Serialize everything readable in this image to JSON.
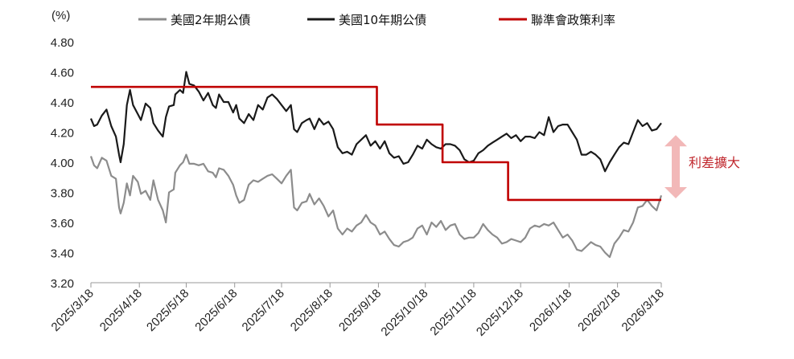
{
  "chart_data": {
    "type": "line",
    "ylabel": "(%)",
    "ylim": [
      3.2,
      4.8
    ],
    "yticks": [
      "3.20",
      "3.40",
      "3.60",
      "3.80",
      "4.00",
      "4.20",
      "4.40",
      "4.60",
      "4.80"
    ],
    "xticks": [
      "2025/3/18",
      "2025/4/18",
      "2025/5/18",
      "2025/6/18",
      "2025/7/18",
      "2025/8/18",
      "2025/9/18",
      "2025/10/18",
      "2025/11/18",
      "2025/12/18",
      "2026/1/18",
      "2026/2/18",
      "2026/3/18"
    ],
    "grid": false,
    "legend_position": "top",
    "series": [
      {
        "name": "美國2年期公債",
        "color": "#8c8c8c",
        "points": [
          [
            "2025/3/18",
            4.04
          ],
          [
            "2025/3/20",
            3.98
          ],
          [
            "2025/3/22",
            3.96
          ],
          [
            "2025/3/25",
            4.03
          ],
          [
            "2025/3/28",
            4.01
          ],
          [
            "2025/3/31",
            3.91
          ],
          [
            "2025/4/3",
            3.89
          ],
          [
            "2025/4/5",
            3.7
          ],
          [
            "2025/4/6",
            3.66
          ],
          [
            "2025/4/8",
            3.73
          ],
          [
            "2025/4/10",
            3.86
          ],
          [
            "2025/4/12",
            3.78
          ],
          [
            "2025/4/14",
            3.91
          ],
          [
            "2025/4/17",
            3.87
          ],
          [
            "2025/4/19",
            3.79
          ],
          [
            "2025/4/22",
            3.81
          ],
          [
            "2025/4/25",
            3.75
          ],
          [
            "2025/4/27",
            3.88
          ],
          [
            "2025/4/30",
            3.75
          ],
          [
            "2025/5/3",
            3.68
          ],
          [
            "2025/5/5",
            3.6
          ],
          [
            "2025/5/7",
            3.8
          ],
          [
            "2025/5/10",
            3.82
          ],
          [
            "2025/5/11",
            3.93
          ],
          [
            "2025/5/14",
            3.98
          ],
          [
            "2025/5/16",
            4.0
          ],
          [
            "2025/5/18",
            4.05
          ],
          [
            "2025/5/20",
            3.99
          ],
          [
            "2025/5/23",
            3.99
          ],
          [
            "2025/5/26",
            3.98
          ],
          [
            "2025/5/29",
            3.99
          ],
          [
            "2025/6/1",
            3.94
          ],
          [
            "2025/6/4",
            3.93
          ],
          [
            "2025/6/6",
            3.9
          ],
          [
            "2025/6/8",
            3.96
          ],
          [
            "2025/6/11",
            3.95
          ],
          [
            "2025/6/14",
            3.91
          ],
          [
            "2025/6/17",
            3.85
          ],
          [
            "2025/6/19",
            3.78
          ],
          [
            "2025/6/21",
            3.73
          ],
          [
            "2025/6/24",
            3.75
          ],
          [
            "2025/6/27",
            3.85
          ],
          [
            "2025/6/30",
            3.88
          ],
          [
            "2025/7/3",
            3.87
          ],
          [
            "2025/7/6",
            3.89
          ],
          [
            "2025/7/9",
            3.91
          ],
          [
            "2025/7/12",
            3.92
          ],
          [
            "2025/7/15",
            3.89
          ],
          [
            "2025/7/18",
            3.86
          ],
          [
            "2025/7/21",
            3.91
          ],
          [
            "2025/7/24",
            3.95
          ],
          [
            "2025/7/26",
            3.7
          ],
          [
            "2025/7/28",
            3.68
          ],
          [
            "2025/7/31",
            3.73
          ],
          [
            "2025/8/3",
            3.74
          ],
          [
            "2025/8/5",
            3.79
          ],
          [
            "2025/8/8",
            3.72
          ],
          [
            "2025/8/11",
            3.76
          ],
          [
            "2025/8/14",
            3.71
          ],
          [
            "2025/8/17",
            3.64
          ],
          [
            "2025/8/20",
            3.68
          ],
          [
            "2025/8/23",
            3.56
          ],
          [
            "2025/8/26",
            3.52
          ],
          [
            "2025/8/29",
            3.56
          ],
          [
            "2025/9/1",
            3.54
          ],
          [
            "2025/9/4",
            3.58
          ],
          [
            "2025/9/7",
            3.6
          ],
          [
            "2025/9/10",
            3.65
          ],
          [
            "2025/9/13",
            3.6
          ],
          [
            "2025/9/16",
            3.58
          ],
          [
            "2025/9/19",
            3.52
          ],
          [
            "2025/9/22",
            3.54
          ],
          [
            "2025/9/25",
            3.49
          ],
          [
            "2025/9/28",
            3.45
          ],
          [
            "2025/10/1",
            3.44
          ],
          [
            "2025/10/4",
            3.47
          ],
          [
            "2025/10/7",
            3.48
          ],
          [
            "2025/10/10",
            3.5
          ],
          [
            "2025/10/13",
            3.56
          ],
          [
            "2025/10/16",
            3.58
          ],
          [
            "2025/10/19",
            3.52
          ],
          [
            "2025/10/22",
            3.6
          ],
          [
            "2025/10/25",
            3.57
          ],
          [
            "2025/10/28",
            3.61
          ],
          [
            "2025/10/31",
            3.55
          ],
          [
            "2025/11/3",
            3.58
          ],
          [
            "2025/11/6",
            3.59
          ],
          [
            "2025/11/9",
            3.52
          ],
          [
            "2025/11/12",
            3.49
          ],
          [
            "2025/11/15",
            3.5
          ],
          [
            "2025/11/18",
            3.5
          ],
          [
            "2025/11/21",
            3.53
          ],
          [
            "2025/11/24",
            3.59
          ],
          [
            "2025/11/27",
            3.55
          ],
          [
            "2025/11/30",
            3.52
          ],
          [
            "2025/12/3",
            3.5
          ],
          [
            "2025/12/6",
            3.46
          ],
          [
            "2025/12/9",
            3.47
          ],
          [
            "2025/12/12",
            3.49
          ],
          [
            "2025/12/15",
            3.48
          ],
          [
            "2025/12/18",
            3.47
          ],
          [
            "2025/12/21",
            3.5
          ],
          [
            "2025/12/24",
            3.56
          ],
          [
            "2025/12/27",
            3.58
          ],
          [
            "2025/12/30",
            3.57
          ],
          [
            "2026/1/2",
            3.59
          ],
          [
            "2026/1/5",
            3.58
          ],
          [
            "2026/1/8",
            3.6
          ],
          [
            "2026/1/11",
            3.55
          ],
          [
            "2026/1/14",
            3.5
          ],
          [
            "2026/1/17",
            3.52
          ],
          [
            "2026/1/20",
            3.48
          ],
          [
            "2026/1/23",
            3.42
          ],
          [
            "2026/1/26",
            3.41
          ],
          [
            "2026/1/29",
            3.44
          ],
          [
            "2026/2/1",
            3.47
          ],
          [
            "2026/2/4",
            3.45
          ],
          [
            "2026/2/7",
            3.44
          ],
          [
            "2026/2/10",
            3.4
          ],
          [
            "2026/2/13",
            3.37
          ],
          [
            "2026/2/16",
            3.46
          ],
          [
            "2026/2/19",
            3.5
          ],
          [
            "2026/2/22",
            3.55
          ],
          [
            "2026/2/25",
            3.54
          ],
          [
            "2026/2/28",
            3.6
          ],
          [
            "2026/3/3",
            3.7
          ],
          [
            "2026/3/6",
            3.71
          ],
          [
            "2026/3/9",
            3.75
          ],
          [
            "2026/3/12",
            3.71
          ],
          [
            "2026/3/15",
            3.68
          ],
          [
            "2026/3/18",
            3.78
          ]
        ]
      },
      {
        "name": "美國10年期公債",
        "color": "#1a1a1a",
        "points": [
          [
            "2025/3/18",
            4.29
          ],
          [
            "2025/3/20",
            4.24
          ],
          [
            "2025/3/22",
            4.25
          ],
          [
            "2025/3/25",
            4.31
          ],
          [
            "2025/3/28",
            4.35
          ],
          [
            "2025/3/31",
            4.24
          ],
          [
            "2025/4/3",
            4.17
          ],
          [
            "2025/4/5",
            4.05
          ],
          [
            "2025/4/6",
            4.0
          ],
          [
            "2025/4/8",
            4.12
          ],
          [
            "2025/4/10",
            4.38
          ],
          [
            "2025/4/12",
            4.48
          ],
          [
            "2025/4/14",
            4.38
          ],
          [
            "2025/4/17",
            4.32
          ],
          [
            "2025/4/19",
            4.28
          ],
          [
            "2025/4/22",
            4.39
          ],
          [
            "2025/4/25",
            4.36
          ],
          [
            "2025/4/27",
            4.26
          ],
          [
            "2025/4/30",
            4.21
          ],
          [
            "2025/5/3",
            4.17
          ],
          [
            "2025/5/5",
            4.3
          ],
          [
            "2025/5/7",
            4.37
          ],
          [
            "2025/5/10",
            4.38
          ],
          [
            "2025/5/11",
            4.45
          ],
          [
            "2025/5/14",
            4.48
          ],
          [
            "2025/5/16",
            4.46
          ],
          [
            "2025/5/18",
            4.6
          ],
          [
            "2025/5/20",
            4.52
          ],
          [
            "2025/5/23",
            4.51
          ],
          [
            "2025/5/26",
            4.47
          ],
          [
            "2025/5/29",
            4.41
          ],
          [
            "2025/6/1",
            4.46
          ],
          [
            "2025/6/4",
            4.38
          ],
          [
            "2025/6/6",
            4.36
          ],
          [
            "2025/6/8",
            4.45
          ],
          [
            "2025/6/11",
            4.4
          ],
          [
            "2025/6/14",
            4.4
          ],
          [
            "2025/6/17",
            4.33
          ],
          [
            "2025/6/19",
            4.38
          ],
          [
            "2025/6/21",
            4.29
          ],
          [
            "2025/6/24",
            4.26
          ],
          [
            "2025/6/27",
            4.32
          ],
          [
            "2025/6/30",
            4.28
          ],
          [
            "2025/7/3",
            4.38
          ],
          [
            "2025/7/6",
            4.35
          ],
          [
            "2025/7/9",
            4.43
          ],
          [
            "2025/7/12",
            4.45
          ],
          [
            "2025/7/15",
            4.42
          ],
          [
            "2025/7/18",
            4.38
          ],
          [
            "2025/7/21",
            4.34
          ],
          [
            "2025/7/24",
            4.38
          ],
          [
            "2025/7/26",
            4.22
          ],
          [
            "2025/7/28",
            4.2
          ],
          [
            "2025/7/31",
            4.26
          ],
          [
            "2025/8/3",
            4.28
          ],
          [
            "2025/8/5",
            4.29
          ],
          [
            "2025/8/8",
            4.22
          ],
          [
            "2025/8/11",
            4.29
          ],
          [
            "2025/8/14",
            4.25
          ],
          [
            "2025/8/17",
            4.27
          ],
          [
            "2025/8/20",
            4.22
          ],
          [
            "2025/8/23",
            4.1
          ],
          [
            "2025/8/26",
            4.06
          ],
          [
            "2025/8/29",
            4.07
          ],
          [
            "2025/9/1",
            4.05
          ],
          [
            "2025/9/4",
            4.12
          ],
          [
            "2025/9/7",
            4.15
          ],
          [
            "2025/9/10",
            4.18
          ],
          [
            "2025/9/13",
            4.11
          ],
          [
            "2025/9/16",
            4.14
          ],
          [
            "2025/9/19",
            4.09
          ],
          [
            "2025/9/22",
            4.14
          ],
          [
            "2025/9/25",
            4.06
          ],
          [
            "2025/9/28",
            4.03
          ],
          [
            "2025/10/1",
            4.04
          ],
          [
            "2025/10/4",
            3.99
          ],
          [
            "2025/10/7",
            4.0
          ],
          [
            "2025/10/10",
            4.05
          ],
          [
            "2025/10/13",
            4.11
          ],
          [
            "2025/10/16",
            4.09
          ],
          [
            "2025/10/19",
            4.15
          ],
          [
            "2025/10/22",
            4.12
          ],
          [
            "2025/10/25",
            4.1
          ],
          [
            "2025/10/28",
            4.09
          ],
          [
            "2025/10/31",
            4.12
          ],
          [
            "2025/11/3",
            4.12
          ],
          [
            "2025/11/6",
            4.11
          ],
          [
            "2025/11/9",
            4.08
          ],
          [
            "2025/11/12",
            4.02
          ],
          [
            "2025/11/15",
            4.0
          ],
          [
            "2025/11/18",
            4.01
          ],
          [
            "2025/11/21",
            4.06
          ],
          [
            "2025/11/24",
            4.08
          ],
          [
            "2025/11/27",
            4.11
          ],
          [
            "2025/11/30",
            4.13
          ],
          [
            "2025/12/3",
            4.15
          ],
          [
            "2025/12/6",
            4.17
          ],
          [
            "2025/12/9",
            4.19
          ],
          [
            "2025/12/12",
            4.16
          ],
          [
            "2025/12/15",
            4.18
          ],
          [
            "2025/12/18",
            4.14
          ],
          [
            "2025/12/21",
            4.17
          ],
          [
            "2025/12/24",
            4.17
          ],
          [
            "2025/12/27",
            4.16
          ],
          [
            "2025/12/30",
            4.2
          ],
          [
            "2026/1/2",
            4.18
          ],
          [
            "2026/1/5",
            4.3
          ],
          [
            "2026/1/8",
            4.2
          ],
          [
            "2026/1/11",
            4.24
          ],
          [
            "2026/1/14",
            4.25
          ],
          [
            "2026/1/17",
            4.25
          ],
          [
            "2026/1/20",
            4.2
          ],
          [
            "2026/1/23",
            4.15
          ],
          [
            "2026/1/26",
            4.05
          ],
          [
            "2026/1/29",
            4.05
          ],
          [
            "2026/2/1",
            4.07
          ],
          [
            "2026/2/4",
            4.05
          ],
          [
            "2026/2/7",
            4.02
          ],
          [
            "2026/2/10",
            3.94
          ],
          [
            "2026/2/13",
            4.0
          ],
          [
            "2026/2/16",
            4.05
          ],
          [
            "2026/2/19",
            4.1
          ],
          [
            "2026/2/22",
            4.13
          ],
          [
            "2026/2/25",
            4.12
          ],
          [
            "2026/2/28",
            4.2
          ],
          [
            "2026/3/3",
            4.28
          ],
          [
            "2026/3/6",
            4.24
          ],
          [
            "2026/3/9",
            4.26
          ],
          [
            "2026/3/12",
            4.21
          ],
          [
            "2026/3/15",
            4.22
          ],
          [
            "2026/3/18",
            4.26
          ]
        ]
      },
      {
        "name": "聯準會政策利率",
        "color": "#c00000",
        "step": true,
        "points": [
          [
            "2025/3/18",
            4.5
          ],
          [
            "2025/9/17",
            4.5
          ],
          [
            "2025/9/17",
            4.25
          ],
          [
            "2025/10/29",
            4.25
          ],
          [
            "2025/10/29",
            4.0
          ],
          [
            "2025/12/10",
            4.0
          ],
          [
            "2025/12/10",
            3.75
          ],
          [
            "2026/3/18",
            3.75
          ]
        ]
      }
    ],
    "annotation": {
      "text": "利差擴大",
      "arrow_from": 4.18,
      "arrow_to": 3.76,
      "color": "#c0272d",
      "arrow_color": "#f2b8b8"
    }
  }
}
